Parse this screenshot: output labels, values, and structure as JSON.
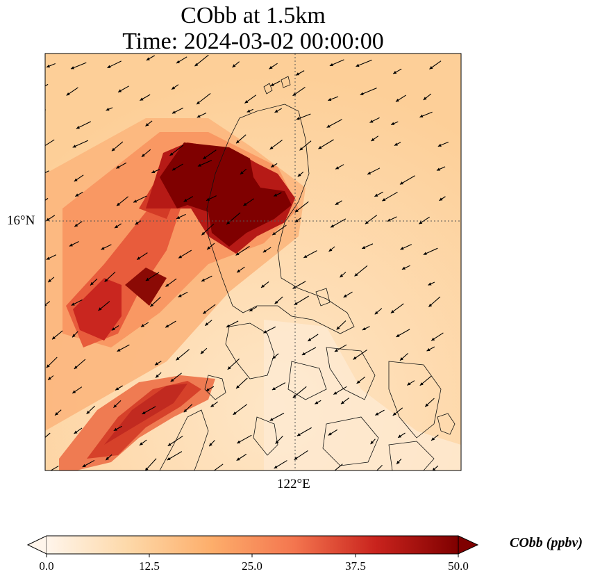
{
  "title": {
    "line1": "CObb at 1.5km",
    "line2": "Time: 2024-03-02 00:00:00"
  },
  "map": {
    "lat_label": "16°N",
    "lon_label": "122°E",
    "colormap": [
      "#fff5eb",
      "#fee6ce",
      "#fdd0a2",
      "#fdae6b",
      "#fd8d3c",
      "#f16913",
      "#d94801",
      "#a63603",
      "#7f2704"
    ],
    "gridline_style": "dotted"
  },
  "colorbar": {
    "label": "CObb (ppbv)",
    "ticks": [
      "0.0",
      "12.5",
      "25.0",
      "37.5",
      "50.0"
    ],
    "range": [
      0,
      50
    ],
    "extend": "both",
    "colors": [
      "#fff5eb",
      "#fdd8a8",
      "#fdae6b",
      "#f4764f",
      "#c9231d",
      "#7f0000"
    ]
  }
}
